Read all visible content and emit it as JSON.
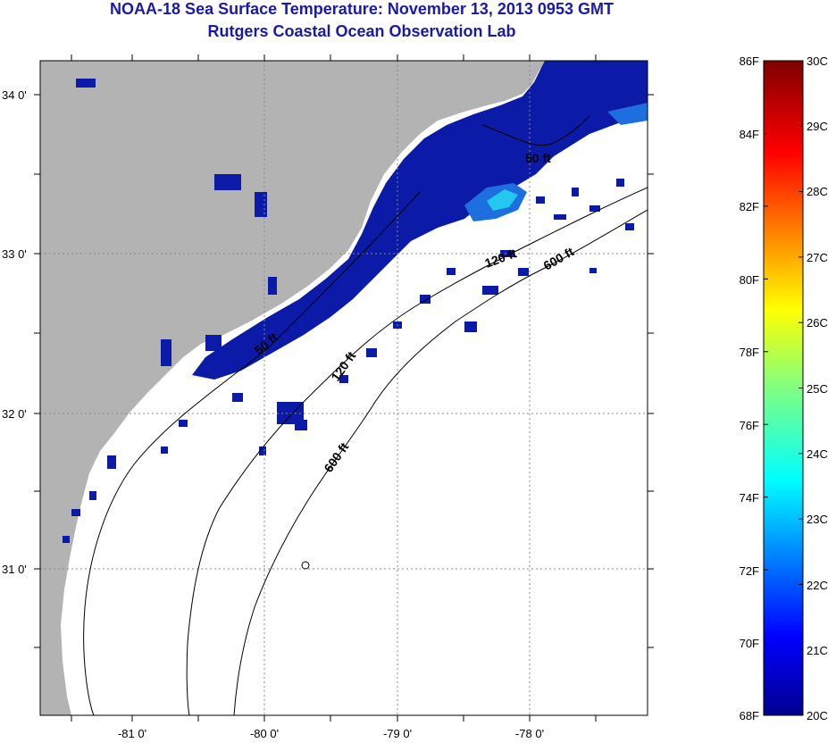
{
  "title": {
    "line1": "NOAA-18 Sea Surface Temperature:  November 13, 2013 0953 GMT",
    "line2": "Rutgers Coastal Ocean Observation Lab"
  },
  "map": {
    "lat_labels": [
      "34 0'",
      "33 0'",
      "32 0'",
      "31 0'"
    ],
    "lon_labels": [
      "-81 0'",
      "-80 0'",
      "-79 0'",
      "-78 0'"
    ],
    "contour_labels": [
      "50 ft",
      "120 ft",
      "600 ft",
      "120 ft",
      "50 ft",
      "600 ft"
    ],
    "colors": {
      "land": "#b3b3b3",
      "cloud": "#ffffff",
      "sst_cold": "#0c1aa8",
      "sst_mid": "#1d6fe0",
      "sst_warm": "#22c8f0"
    }
  },
  "colorbar": {
    "f_labels": [
      "86F",
      "84F",
      "82F",
      "80F",
      "78F",
      "76F",
      "74F",
      "72F",
      "70F",
      "68F"
    ],
    "c_labels": [
      "30C",
      "29C",
      "28C",
      "27C",
      "26C",
      "25C",
      "24C",
      "23C",
      "22C",
      "21C",
      "20C"
    ]
  }
}
